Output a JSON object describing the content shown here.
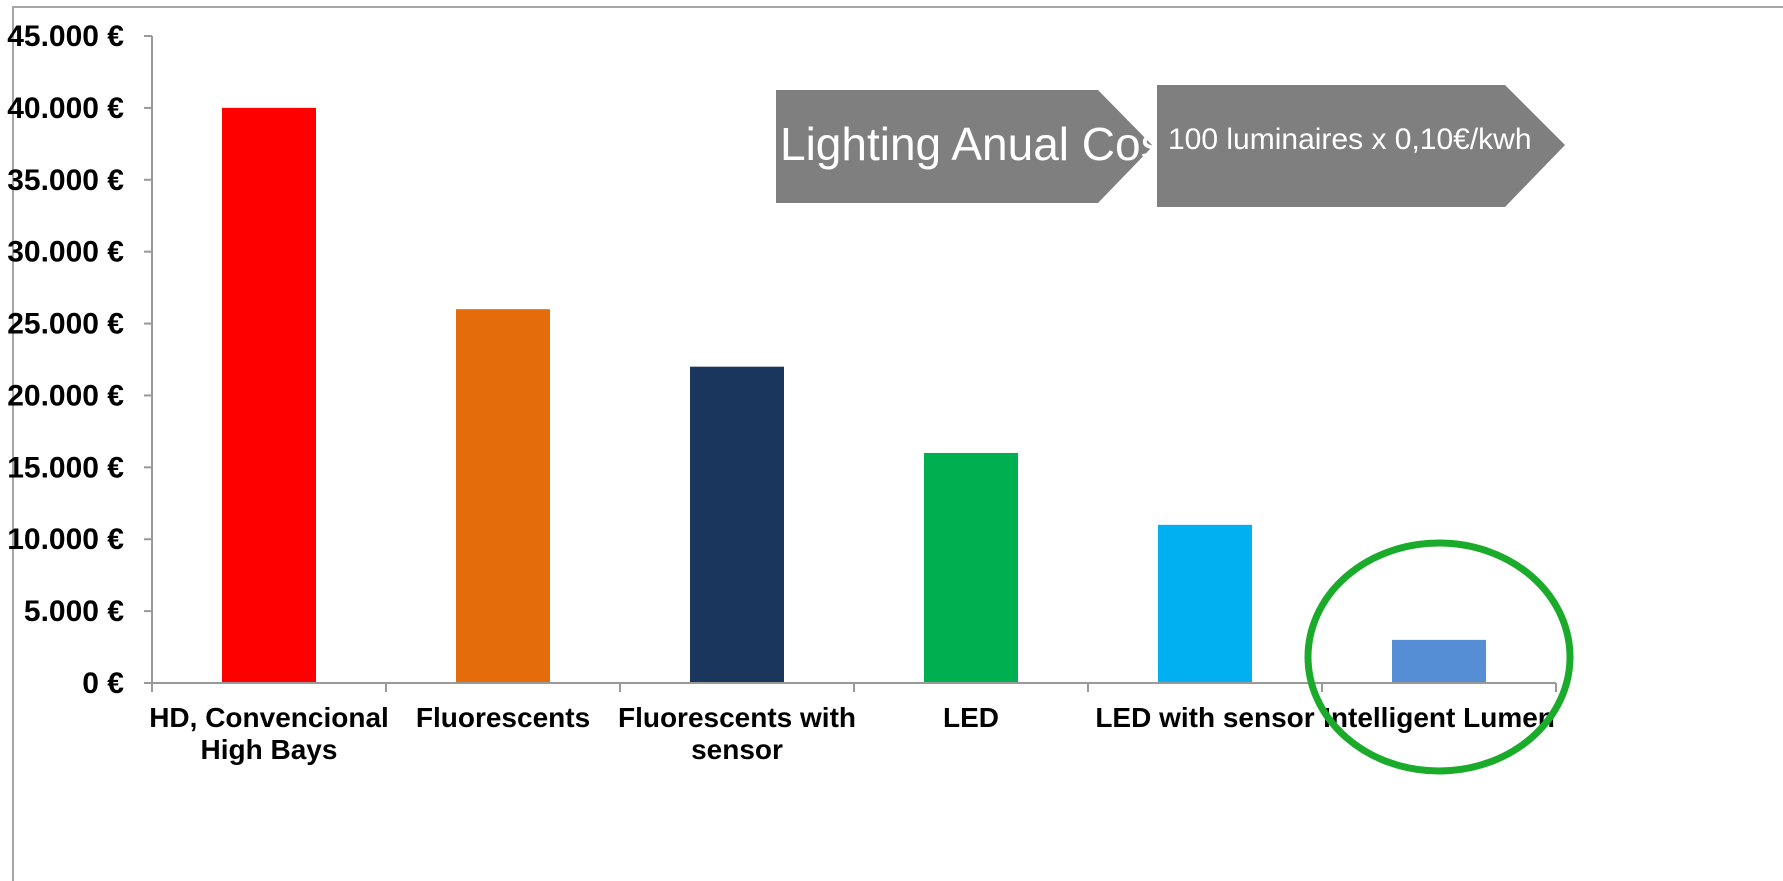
{
  "chart_data": {
    "type": "bar",
    "categories": [
      [
        "HD, Convencional",
        "High Bays"
      ],
      [
        "Fluorescents"
      ],
      [
        "Fluorescents with",
        "sensor"
      ],
      [
        "LED"
      ],
      [
        "LED with sensor"
      ],
      [
        "Intelligent Lumen"
      ]
    ],
    "values": [
      40000,
      26000,
      22000,
      16000,
      11000,
      3000
    ],
    "bar_colors": [
      "#ff0000",
      "#e46c0a",
      "#1b365d",
      "#00b050",
      "#00b0f0",
      "#558ed5"
    ],
    "ylim": [
      0,
      45000
    ],
    "yticks": [
      0,
      5000,
      10000,
      15000,
      20000,
      25000,
      30000,
      35000,
      40000,
      45000
    ],
    "ytick_labels": [
      "0 €",
      "5.000 €",
      "10.000 €",
      "15.000 €",
      "20.000 €",
      "25.000 €",
      "30.000 €",
      "35.000 €",
      "40.000 €",
      "45.000 €"
    ],
    "xlabel": "",
    "ylabel": "",
    "grid": false,
    "highlight": {
      "category_index": 5,
      "shape": "ellipse",
      "color": "#1aab2a"
    },
    "annotations": [
      {
        "text": "Lighting Anual Cost",
        "shape": "chevron",
        "color": "#7f7f7f"
      },
      {
        "text": "100 luminaires x 0,10€/kwh",
        "shape": "chevron",
        "color": "#7f7f7f"
      }
    ],
    "axis_color": "#999999",
    "frame_color": "#a6a6a6"
  }
}
